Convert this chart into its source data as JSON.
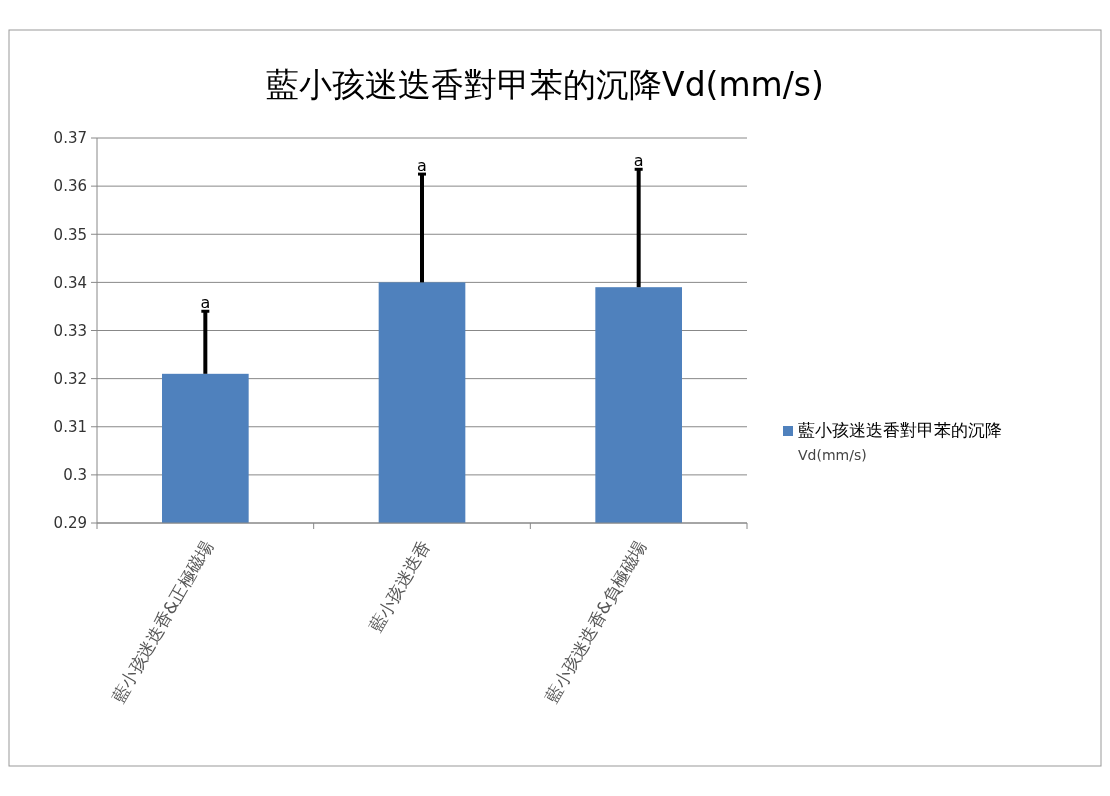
{
  "chart_data": {
    "type": "bar",
    "title": "藍小孩迷迭香對甲苯的沉降Vd(mm/s)",
    "categories": [
      "藍小孩迷迭香&正極磁場",
      "藍小孩迷迭香",
      "藍小孩迷迭香&負極磁場"
    ],
    "series": [
      {
        "name": "藍小孩迷迭香對甲苯的沉降 Vd(mm/s)",
        "color": "#4f81bd",
        "values": [
          0.321,
          0.34,
          0.339
        ],
        "errors": [
          [
            0.321,
            0.334
          ],
          [
            0.34,
            0.3625
          ],
          [
            0.339,
            0.3635
          ]
        ]
      }
    ],
    "ylim": [
      0.29,
      0.37
    ],
    "yticks": [
      {
        "value": 0.29,
        "label": "0.29"
      },
      {
        "value": 0.3,
        "label": "0.3"
      },
      0.31,
      0.32,
      0.33,
      0.34,
      0.35,
      0.36,
      0.37
    ],
    "grid": "y",
    "legend": "right",
    "annotations": [
      {
        "text": "a",
        "x": "藍小孩迷迭香&正極磁場",
        "y": 0.334
      },
      {
        "text": "a",
        "x": "藍小孩迷迭香",
        "y": 0.3625
      },
      {
        "text": "a",
        "x": "藍小孩迷迭香&負極磁場",
        "y": 0.3635
      }
    ]
  }
}
